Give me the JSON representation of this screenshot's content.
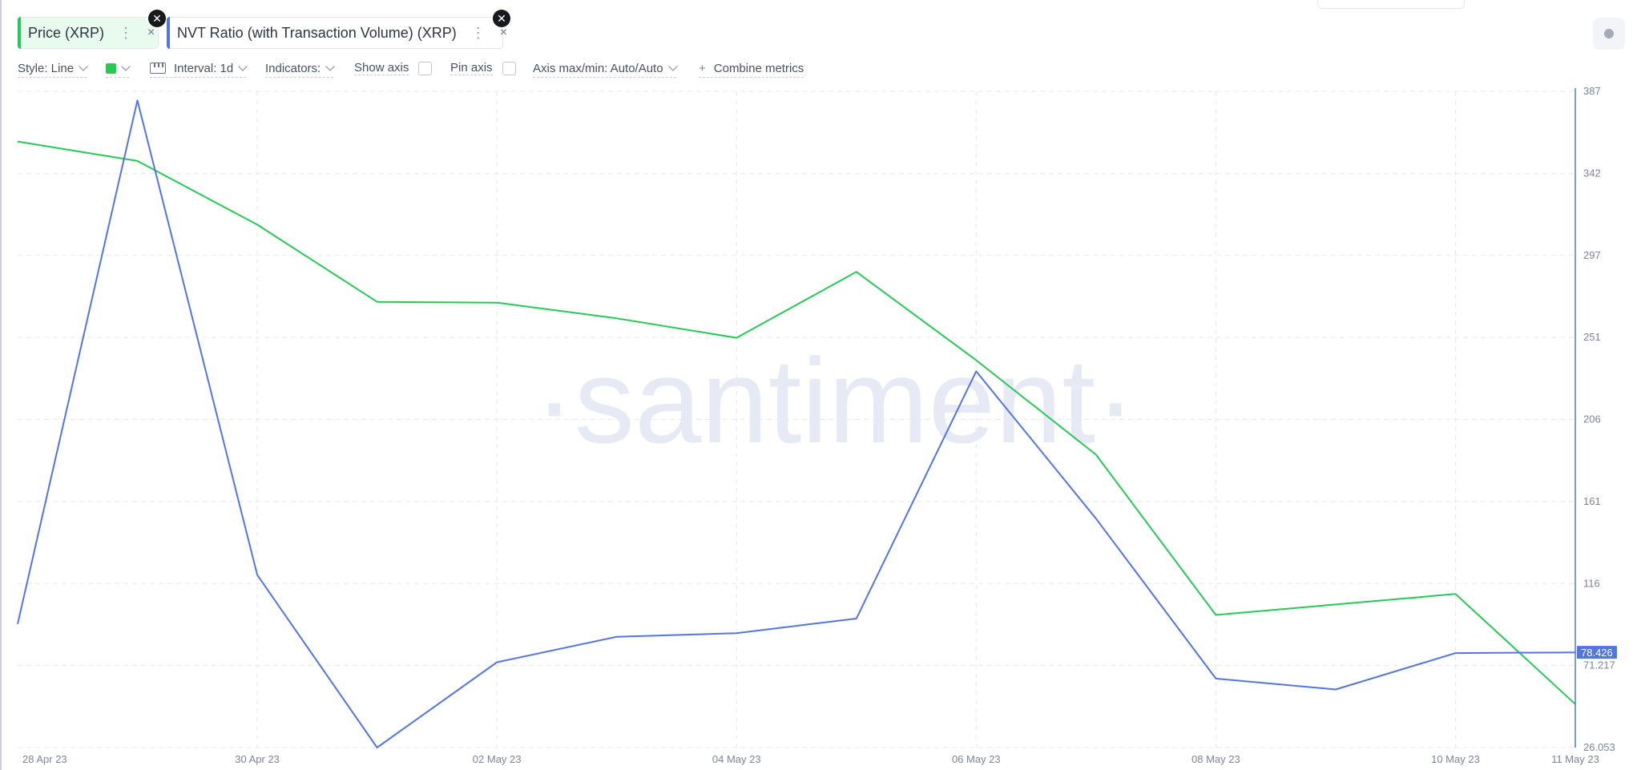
{
  "metrics": [
    {
      "label": "Price (XRP)",
      "color": "#26c953"
    },
    {
      "label": "NVT Ratio (with Transaction Volume) (XRP)",
      "color": "#5275e2"
    }
  ],
  "chip_menu_icon": "⋮",
  "chip_close_icon": "×",
  "toolbar": {
    "style_label": "Style: Line",
    "interval_label": "Interval: 1d",
    "indicators_label": "Indicators:",
    "show_axis_label": "Show axis",
    "pin_axis_label": "Pin axis",
    "axis_maxmin_label": "Axis max/min: Auto/Auto",
    "combine_label": "Combine metrics",
    "combine_icon": "+"
  },
  "chart_data": {
    "type": "line",
    "watermark": "·santiment·",
    "x": [
      "28 Apr 23",
      "29 Apr 23",
      "30 Apr 23",
      "01 May 23",
      "02 May 23",
      "03 May 23",
      "04 May 23",
      "05 May 23",
      "06 May 23",
      "07 May 23",
      "08 May 23",
      "09 May 23",
      "10 May 23",
      "11 May 23"
    ],
    "x_tick_labels": [
      "28 Apr 23",
      "30 Apr 23",
      "02 May 23",
      "04 May 23",
      "06 May 23",
      "08 May 23",
      "10 May 23",
      "11 May 23"
    ],
    "right_axis": {
      "ticks": [
        "387",
        "342",
        "297",
        "251",
        "206",
        "161",
        "116",
        "71.217",
        "26.053"
      ],
      "ylim": [
        26.053,
        387
      ],
      "current_value_label": "78.426"
    },
    "series": [
      {
        "name": "Price (XRP)",
        "color": "#26c953",
        "axis": "hidden",
        "values": [
          0.4759,
          0.4733,
          0.4648,
          0.4545,
          0.4544,
          0.4523,
          0.4497,
          0.4585,
          0.4467,
          0.4341,
          0.4127,
          0.4141,
          0.4155,
          0.4008
        ],
        "ylim": [
          0.395,
          0.4826
        ]
      },
      {
        "name": "NVT Ratio (with Transaction Volume) (XRP)",
        "color": "#5275e2",
        "axis": "right",
        "values": [
          94,
          382,
          121,
          26.053,
          73,
          87,
          89,
          97,
          233,
          152,
          64,
          58,
          78,
          78.426
        ],
        "ylim": [
          26.053,
          387
        ]
      }
    ],
    "grid": true,
    "legend": "top-left"
  }
}
